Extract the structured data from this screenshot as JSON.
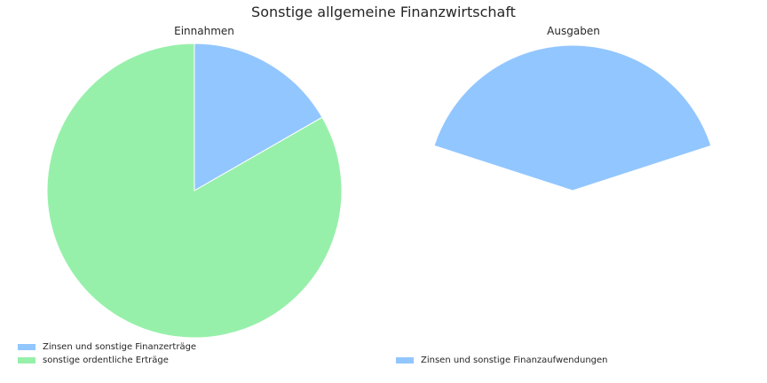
{
  "title": "Sonstige allgemeine Finanzwirtschaft",
  "colors": {
    "blue": "#92c6ff",
    "green": "#97f0aa"
  },
  "chart_data": [
    {
      "type": "pie",
      "title": "Einnahmen",
      "start_angle_deg": 90,
      "counterclock": false,
      "slices": [
        {
          "label": "Zinsen und sonstige Finanzerträge",
          "value": 16.7,
          "color": "#92c6ff"
        },
        {
          "label": "sonstige ordentliche Erträge",
          "value": 83.3,
          "color": "#97f0aa"
        }
      ],
      "legend_position": "lower-left"
    },
    {
      "type": "pie",
      "title": "Ausgaben",
      "start_angle_deg": 90,
      "counterclock": false,
      "slices": [
        {
          "label": "Zinsen und sonstige Finanzaufwendungen",
          "value": 40,
          "color": "#92c6ff"
        }
      ],
      "note_partial_pie": true,
      "legend_position": "lower-left"
    }
  ]
}
